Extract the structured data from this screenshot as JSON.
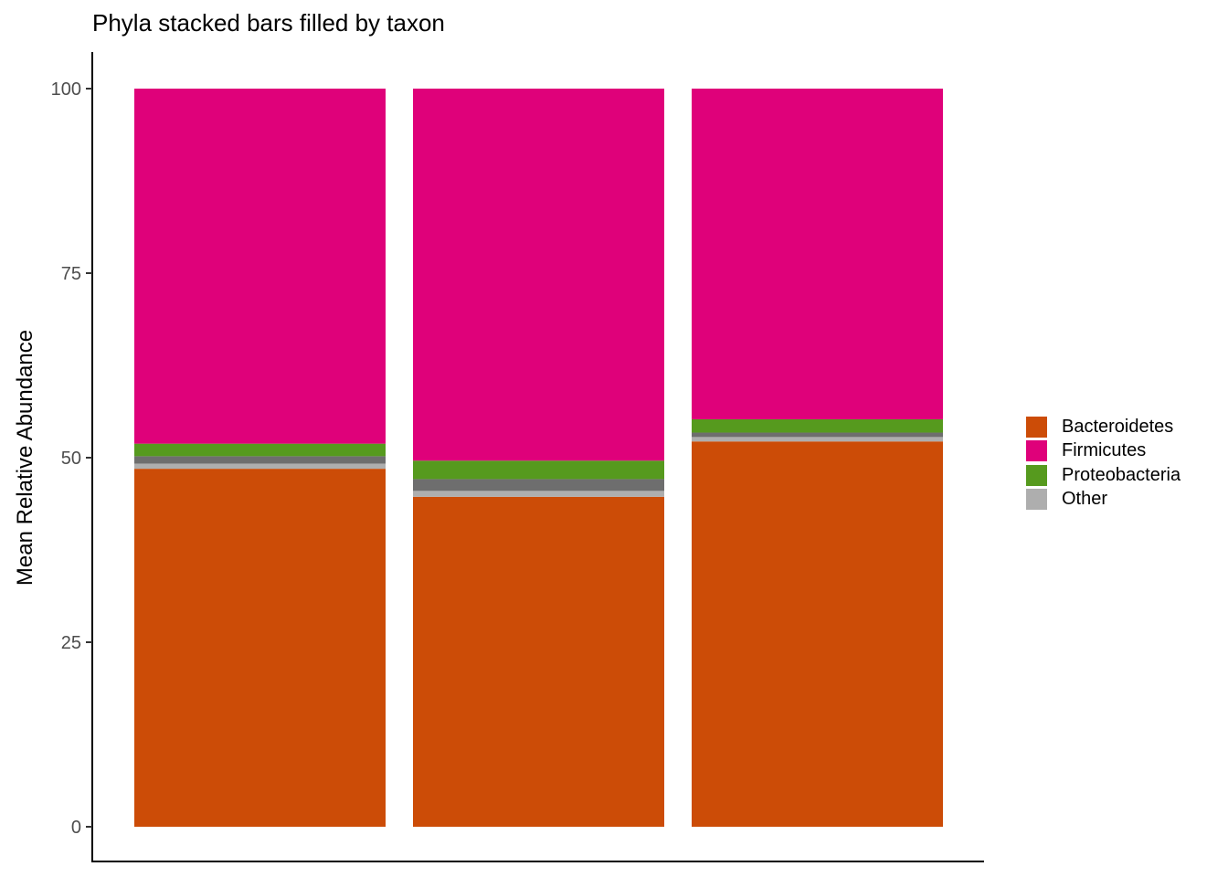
{
  "chart_data": {
    "type": "bar",
    "stacked": true,
    "title": "Phyla stacked bars filled by taxon",
    "xlabel": "",
    "ylabel": "Mean Relative Abundance",
    "ylim": [
      0,
      100
    ],
    "yticks": [
      "0",
      "25",
      "50",
      "75",
      "100"
    ],
    "categories": [
      "",
      "",
      ""
    ],
    "series": [
      {
        "name": "Bacteroidetes",
        "color": "#CC4C07",
        "values": [
          48.5,
          44.7,
          52.2
        ]
      },
      {
        "name": "Other",
        "color": "#AEAEAE",
        "values": [
          0.7,
          0.8,
          0.6
        ]
      },
      {
        "name": "",
        "color": "#6E6E6E",
        "values": [
          1.0,
          1.6,
          0.6
        ]
      },
      {
        "name": "Proteobacteria",
        "color": "#569A1E",
        "values": [
          1.7,
          2.5,
          1.8
        ]
      },
      {
        "name": "Firmicutes",
        "color": "#DF017A",
        "values": [
          48.1,
          50.4,
          44.8
        ]
      }
    ],
    "legend": {
      "position": "right",
      "entries": [
        {
          "label": "Bacteroidetes",
          "color": "#CC4C07"
        },
        {
          "label": "Firmicutes",
          "color": "#DF017A"
        },
        {
          "label": "Proteobacteria",
          "color": "#569A1E"
        },
        {
          "label": "Other",
          "color": "#AEAEAE"
        }
      ]
    },
    "grid": false
  }
}
